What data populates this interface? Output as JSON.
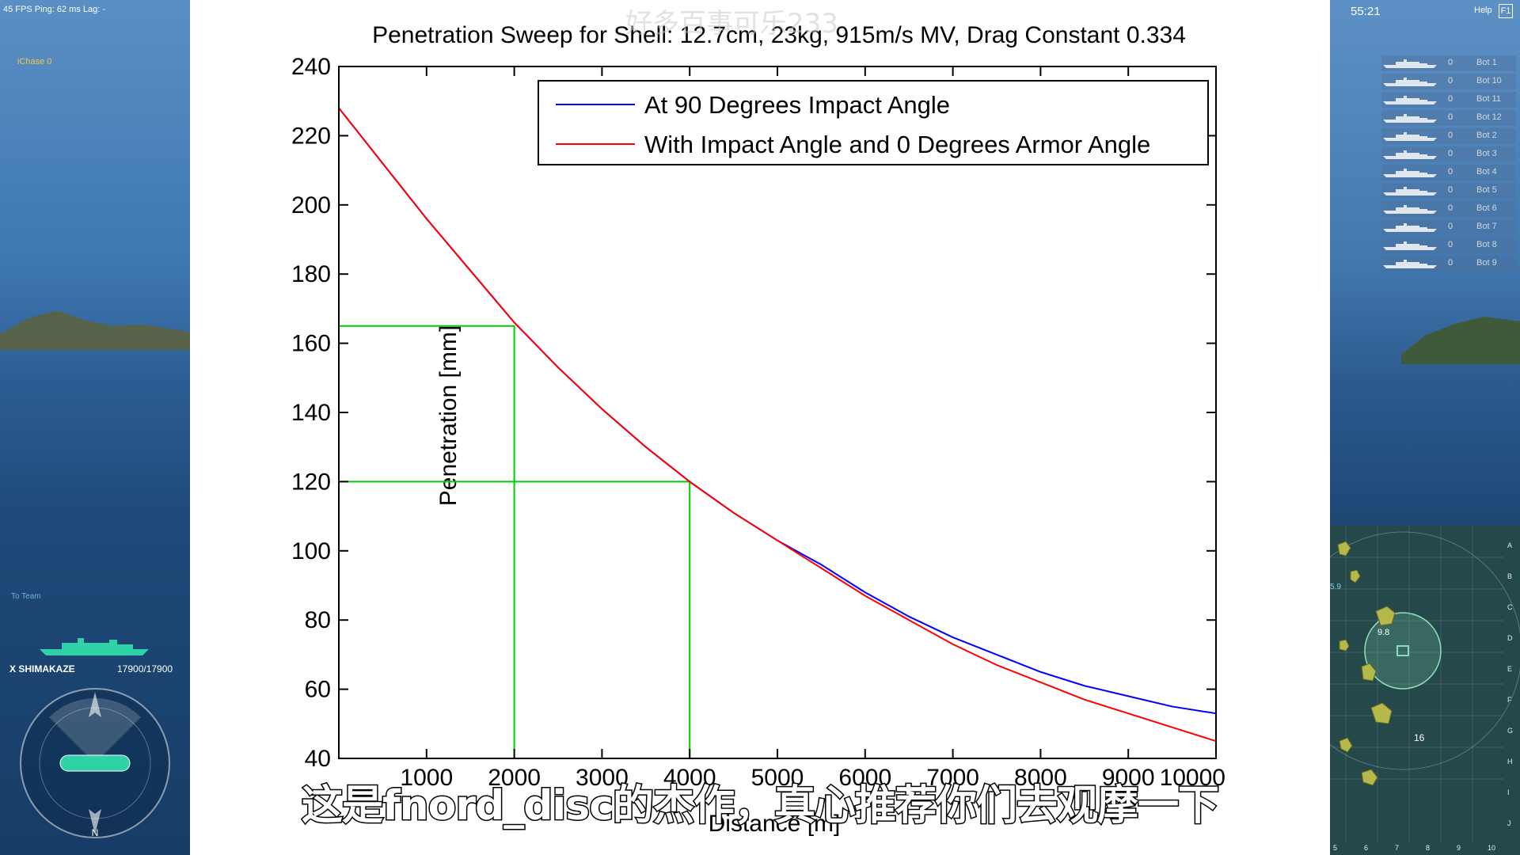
{
  "hud": {
    "perf": "45 FPS  Ping: 62 ms   Lag: -",
    "ally_label": "iChase    0",
    "to_team": "To Team",
    "ship_name": "X SHIMAKAZE",
    "ship_hp": "17900/17900",
    "clock": "55:21",
    "help": "Help",
    "help_key": "F1"
  },
  "enemy_list": [
    {
      "count": "0",
      "name": "Bot 1"
    },
    {
      "count": "0",
      "name": "Bot 10"
    },
    {
      "count": "0",
      "name": "Bot 11"
    },
    {
      "count": "0",
      "name": "Bot 12"
    },
    {
      "count": "0",
      "name": "Bot 2"
    },
    {
      "count": "0",
      "name": "Bot 3"
    },
    {
      "count": "0",
      "name": "Bot 4"
    },
    {
      "count": "0",
      "name": "Bot 5"
    },
    {
      "count": "0",
      "name": "Bot 6"
    },
    {
      "count": "0",
      "name": "Bot 7"
    },
    {
      "count": "0",
      "name": "Bot 8"
    },
    {
      "count": "0",
      "name": "Bot 9"
    }
  ],
  "minimap": {
    "row_letters": [
      "A",
      "B",
      "C",
      "D",
      "E",
      "F",
      "G",
      "H",
      "I",
      "J"
    ],
    "col_numbers": [
      "5",
      "6",
      "7",
      "8",
      "9",
      "10"
    ],
    "range_label_1": "9.8",
    "range_label_2": "16",
    "edge_label": "5.9"
  },
  "watermark": "好多百事可乐233",
  "subtitle": "这是fnord_disc的杰作，真心推荐你们去观摩一下",
  "colors": {
    "series_90": "#0000ff",
    "series_impact": "#ff0000",
    "guide_lines": "#00cc00"
  },
  "chart_data": {
    "type": "line",
    "title": "Penetration Sweep for Shell: 12.7cm, 23kg, 915m/s MV, Drag Constant 0.334",
    "xlabel": "Distance [m]",
    "ylabel": "Penetration [mm]",
    "xlim": [
      0,
      10000
    ],
    "ylim": [
      40,
      240
    ],
    "yticks": [
      40,
      60,
      80,
      100,
      120,
      140,
      160,
      180,
      200,
      220,
      240
    ],
    "xticks": [
      1000,
      2000,
      3000,
      4000,
      5000,
      6000,
      7000,
      8000,
      9000,
      10000
    ],
    "xtick_labels": [
      "1000",
      "2000",
      "3000",
      "4000",
      "5000",
      "6000",
      "7000",
      "8000",
      "9000",
      "10000"
    ],
    "grid": false,
    "legend_position": "top-right",
    "x": [
      0,
      500,
      1000,
      1500,
      2000,
      2500,
      3000,
      3500,
      4000,
      4500,
      5000,
      5500,
      6000,
      6500,
      7000,
      7500,
      8000,
      8500,
      9000,
      9500,
      10000
    ],
    "series": [
      {
        "name": "At 90 Degrees Impact Angle",
        "values": [
          228,
          212,
          196,
          181,
          166,
          153,
          141,
          130,
          120,
          111,
          103,
          96,
          88,
          81,
          75,
          70,
          65,
          61,
          58,
          55,
          53
        ]
      },
      {
        "name": "With Impact Angle and 0 Degrees Armor Angle",
        "values": [
          228,
          212,
          196,
          181,
          166,
          153,
          141,
          130,
          120,
          111,
          103,
          95,
          87,
          80,
          73,
          67,
          62,
          57,
          53,
          49,
          45
        ]
      }
    ],
    "guides": [
      {
        "x": 2000,
        "y": 165
      },
      {
        "x": 4000,
        "y": 120
      }
    ]
  }
}
